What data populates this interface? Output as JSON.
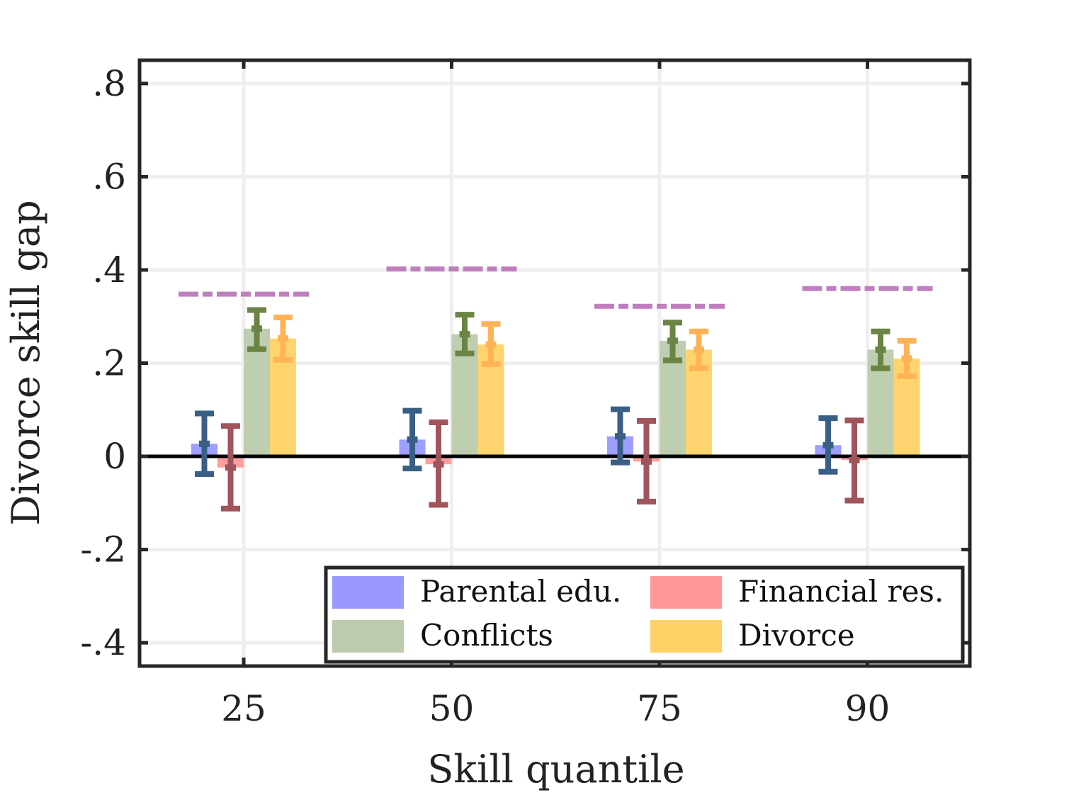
{
  "chart_data": {
    "type": "bar",
    "title": "",
    "xlabel": "Skill quantile",
    "ylabel": "Divorce skill gap",
    "categories": [
      "25",
      "50",
      "75",
      "90"
    ],
    "ylim": [
      -0.45,
      0.85
    ],
    "yticks": [
      -0.4,
      -0.2,
      0,
      0.2,
      0.4,
      0.6,
      0.8
    ],
    "ytick_labels": [
      "-.4",
      "-.2",
      "0",
      ".2",
      ".4",
      ".6",
      ".8"
    ],
    "grid": true,
    "legend_position": "bottom-right",
    "series": [
      {
        "name": "Parental edu.",
        "color": "#9999ff",
        "error_color": "#3a5f85",
        "values": [
          0.027,
          0.036,
          0.043,
          0.024
        ],
        "ci_low": [
          -0.038,
          -0.026,
          -0.013,
          -0.033
        ],
        "ci_high": [
          0.092,
          0.098,
          0.101,
          0.082
        ]
      },
      {
        "name": "Financial res.",
        "color": "#ff9999",
        "error_color": "#a0545c",
        "values": [
          -0.024,
          -0.017,
          -0.011,
          -0.008
        ],
        "ci_low": [
          -0.112,
          -0.104,
          -0.097,
          -0.095
        ],
        "ci_high": [
          0.065,
          0.073,
          0.076,
          0.077
        ]
      },
      {
        "name": "Conflicts",
        "color": "#bccaad",
        "error_color": "#6a8444",
        "values": [
          0.274,
          0.262,
          0.248,
          0.229
        ],
        "ci_low": [
          0.23,
          0.221,
          0.206,
          0.189
        ],
        "ci_high": [
          0.314,
          0.304,
          0.287,
          0.268
        ]
      },
      {
        "name": "Divorce",
        "color": "#ffd266",
        "error_color": "#ffb357",
        "values": [
          0.253,
          0.24,
          0.229,
          0.21
        ],
        "ci_low": [
          0.207,
          0.198,
          0.189,
          0.172
        ],
        "ci_high": [
          0.298,
          0.284,
          0.268,
          0.248
        ]
      }
    ],
    "reference_lines": {
      "style": "dash-dot",
      "color": "#bf7fbf",
      "values": [
        0.348,
        0.402,
        0.322,
        0.36
      ]
    }
  }
}
